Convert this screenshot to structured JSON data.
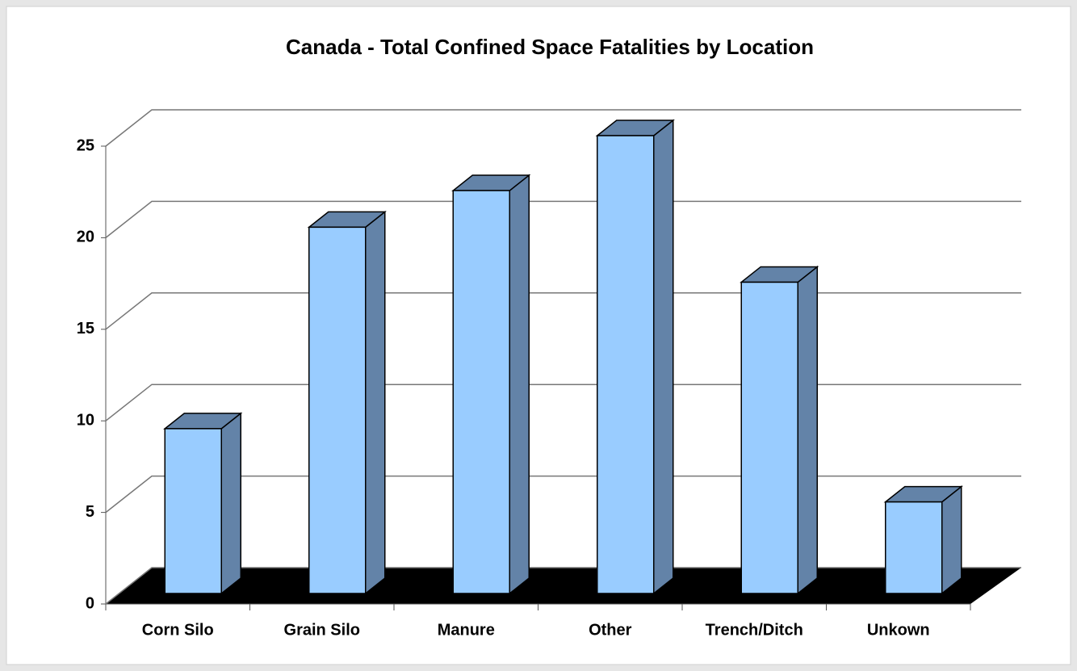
{
  "chart_data": {
    "type": "bar3d",
    "title": "Canada - Total Confined Space Fatalities by Location",
    "categories": [
      "Corn Silo",
      "Grain Silo",
      "Manure",
      "Other",
      "Trench/Ditch",
      "Unkown"
    ],
    "values": [
      9,
      20,
      22,
      25,
      17,
      5
    ],
    "color": "#99ccff",
    "side_color": "#6383a8",
    "floor_color": "#000000",
    "ylim": [
      0,
      25
    ],
    "yticks": [
      0,
      5,
      10,
      15,
      20,
      25
    ],
    "grid": true
  }
}
